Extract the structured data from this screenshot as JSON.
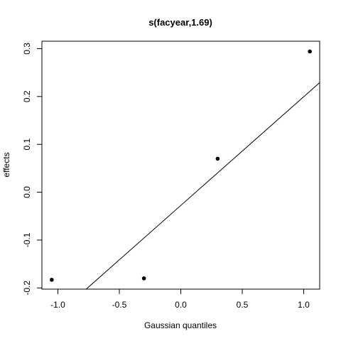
{
  "chart_data": {
    "type": "scatter",
    "title": "s(facyear,1.69)",
    "xlabel": "Gaussian quantiles",
    "ylabel": "effects",
    "xlim": [
      -1.13,
      1.13
    ],
    "ylim": [
      -0.2025,
      0.3155
    ],
    "x_ticks": [
      -1.0,
      -0.5,
      0.0,
      0.5,
      1.0
    ],
    "x_tick_labels": [
      "-1.0",
      "-0.5",
      "0.0",
      "0.5",
      "1.0"
    ],
    "y_ticks": [
      -0.2,
      -0.1,
      0.0,
      0.1,
      0.2,
      0.3
    ],
    "y_tick_labels": [
      "-0.2",
      "-0.1",
      "0.0",
      "0.1",
      "0.2",
      "0.3"
    ],
    "points": [
      {
        "x": -1.05,
        "y": -0.183
      },
      {
        "x": -0.3,
        "y": -0.18
      },
      {
        "x": 0.3,
        "y": 0.07
      },
      {
        "x": 1.05,
        "y": 0.294
      }
    ],
    "reference_line": {
      "x1": -0.77,
      "y1": -0.2025,
      "x2": 1.13,
      "y2": 0.229
    },
    "grid": false,
    "legend": "none",
    "colors": {
      "points": "#000000",
      "line": "#000000",
      "axes": "#000000"
    }
  }
}
